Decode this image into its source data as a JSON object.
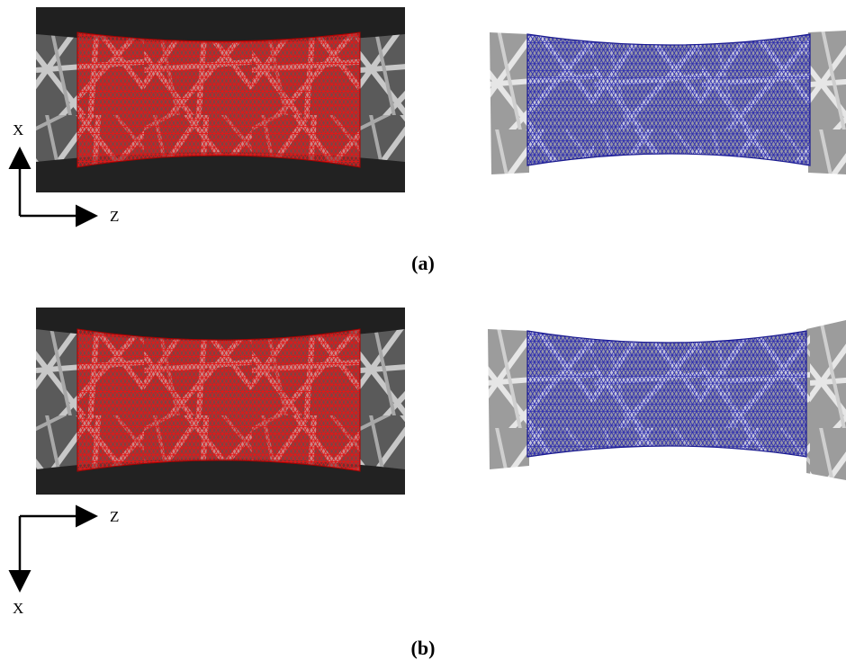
{
  "figure": {
    "panels": [
      {
        "id": "a",
        "caption": "(a)",
        "axes": {
          "vertical_label": "X",
          "horizontal_label": "Z",
          "vertical_direction": "up"
        },
        "left_image": {
          "mesh_color": "#e01818",
          "background": "dark"
        },
        "right_image": {
          "mesh_color": "#2a2ab0",
          "background": "light"
        }
      },
      {
        "id": "b",
        "caption": "(b)",
        "axes": {
          "vertical_label": "X",
          "horizontal_label": "Z",
          "vertical_direction": "down"
        },
        "left_image": {
          "mesh_color": "#e01818",
          "background": "dark"
        },
        "right_image": {
          "mesh_color": "#2a2ab0",
          "background": "light"
        }
      }
    ]
  }
}
